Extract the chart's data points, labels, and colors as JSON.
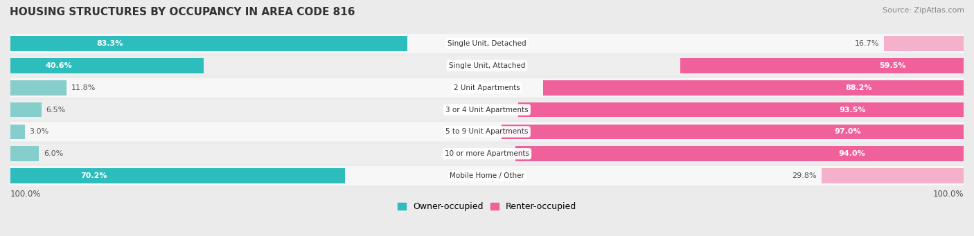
{
  "title": "HOUSING STRUCTURES BY OCCUPANCY IN AREA CODE 816",
  "source": "Source: ZipAtlas.com",
  "categories": [
    "Single Unit, Detached",
    "Single Unit, Attached",
    "2 Unit Apartments",
    "3 or 4 Unit Apartments",
    "5 to 9 Unit Apartments",
    "10 or more Apartments",
    "Mobile Home / Other"
  ],
  "owner_pct": [
    83.3,
    40.6,
    11.8,
    6.5,
    3.0,
    6.0,
    70.2
  ],
  "renter_pct": [
    16.7,
    59.5,
    88.2,
    93.5,
    97.0,
    94.0,
    29.8
  ],
  "owner_color_strong": "#2dbdbd",
  "owner_color_light": "#85cecc",
  "renter_color_strong": "#f0609a",
  "renter_color_light": "#f5b0cc",
  "bg_color": "#ebebeb",
  "row_bg_light": "#f7f7f7",
  "row_bg_dark": "#eeeeee",
  "title_color": "#333333",
  "label_color": "#555555",
  "pct_label_dark": "#555555",
  "legend_owner": "Owner-occupied",
  "legend_renter": "Renter-occupied",
  "axis_label_left": "100.0%",
  "axis_label_right": "100.0%",
  "owner_strong_threshold": 25.0,
  "renter_strong_threshold": 50.0
}
